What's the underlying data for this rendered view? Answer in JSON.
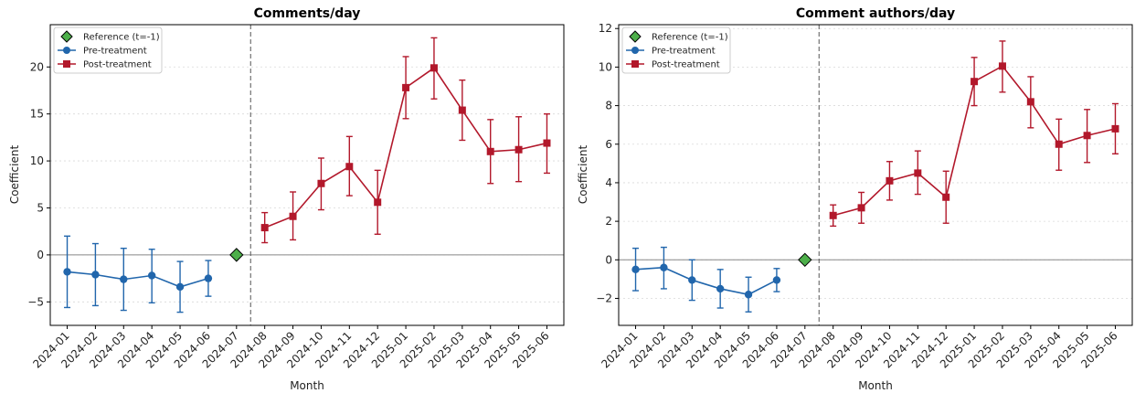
{
  "colors": {
    "pre": "#2166ac",
    "post": "#b2182b",
    "reference": "#4daf4a"
  },
  "legend": {
    "reference": "Reference (t=-1)",
    "pre": "Pre-treatment",
    "post": "Post-treatment"
  },
  "chart_data": [
    {
      "type": "line",
      "title": "Comments/day",
      "xlabel": "Month",
      "ylabel": "Coefficient",
      "categories": [
        "2024-01",
        "2024-02",
        "2024-03",
        "2024-04",
        "2024-05",
        "2024-06",
        "2024-07",
        "2024-08",
        "2024-09",
        "2024-10",
        "2024-11",
        "2024-12",
        "2025-01",
        "2025-02",
        "2025-03",
        "2025-04",
        "2025-05",
        "2025-06"
      ],
      "ylim": [
        -7.5,
        24.5
      ],
      "yticks": [
        -5,
        0,
        5,
        10,
        15,
        20
      ],
      "treatment_line_between": [
        "2024-07",
        "2024-08"
      ],
      "reference": {
        "x": "2024-07",
        "y": 0
      },
      "series": [
        {
          "name": "Pre-treatment",
          "x": [
            "2024-01",
            "2024-02",
            "2024-03",
            "2024-04",
            "2024-05",
            "2024-06"
          ],
          "y": [
            -1.8,
            -2.1,
            -2.6,
            -2.2,
            -3.4,
            -2.5
          ],
          "ci_low": [
            -5.6,
            -5.4,
            -5.9,
            -5.1,
            -6.1,
            -4.4
          ],
          "ci_high": [
            2.0,
            1.2,
            0.7,
            0.6,
            -0.7,
            -0.6
          ]
        },
        {
          "name": "Post-treatment",
          "x": [
            "2024-08",
            "2024-09",
            "2024-10",
            "2024-11",
            "2024-12",
            "2025-01",
            "2025-02",
            "2025-03",
            "2025-04",
            "2025-05",
            "2025-06"
          ],
          "y": [
            2.9,
            4.1,
            7.6,
            9.4,
            5.6,
            17.8,
            19.9,
            15.4,
            11.0,
            11.2,
            11.9
          ],
          "ci_low": [
            1.3,
            1.6,
            4.8,
            6.3,
            2.2,
            14.5,
            16.6,
            12.2,
            7.6,
            7.8,
            8.7
          ],
          "ci_high": [
            4.5,
            6.7,
            10.3,
            12.6,
            9.0,
            21.1,
            23.1,
            18.6,
            14.4,
            14.7,
            15.0
          ]
        }
      ]
    },
    {
      "type": "line",
      "title": "Comment authors/day",
      "xlabel": "Month",
      "ylabel": "Coefficient",
      "categories": [
        "2024-01",
        "2024-02",
        "2024-03",
        "2024-04",
        "2024-05",
        "2024-06",
        "2024-07",
        "2024-08",
        "2024-09",
        "2024-10",
        "2024-11",
        "2024-12",
        "2025-01",
        "2025-02",
        "2025-03",
        "2025-04",
        "2025-05",
        "2025-06"
      ],
      "ylim": [
        -3.4,
        12.2
      ],
      "yticks": [
        -2,
        0,
        2,
        4,
        6,
        8,
        10,
        12
      ],
      "treatment_line_between": [
        "2024-07",
        "2024-08"
      ],
      "reference": {
        "x": "2024-07",
        "y": 0
      },
      "series": [
        {
          "name": "Pre-treatment",
          "x": [
            "2024-01",
            "2024-02",
            "2024-03",
            "2024-04",
            "2024-05",
            "2024-06"
          ],
          "y": [
            -0.5,
            -0.4,
            -1.05,
            -1.5,
            -1.8,
            -1.05
          ],
          "ci_low": [
            -1.6,
            -1.5,
            -2.1,
            -2.5,
            -2.7,
            -1.65
          ],
          "ci_high": [
            0.6,
            0.65,
            0.0,
            -0.5,
            -0.9,
            -0.45
          ]
        },
        {
          "name": "Post-treatment",
          "x": [
            "2024-08",
            "2024-09",
            "2024-10",
            "2024-11",
            "2024-12",
            "2025-01",
            "2025-02",
            "2025-03",
            "2025-04",
            "2025-05",
            "2025-06"
          ],
          "y": [
            2.3,
            2.7,
            4.1,
            4.5,
            3.25,
            9.25,
            10.05,
            8.2,
            6.0,
            6.45,
            6.8
          ],
          "ci_low": [
            1.75,
            1.9,
            3.1,
            3.4,
            1.9,
            8.0,
            8.7,
            6.85,
            4.65,
            5.05,
            5.5
          ],
          "ci_high": [
            2.85,
            3.5,
            5.1,
            5.65,
            4.6,
            10.5,
            11.35,
            9.5,
            7.3,
            7.8,
            8.1
          ]
        }
      ]
    }
  ]
}
